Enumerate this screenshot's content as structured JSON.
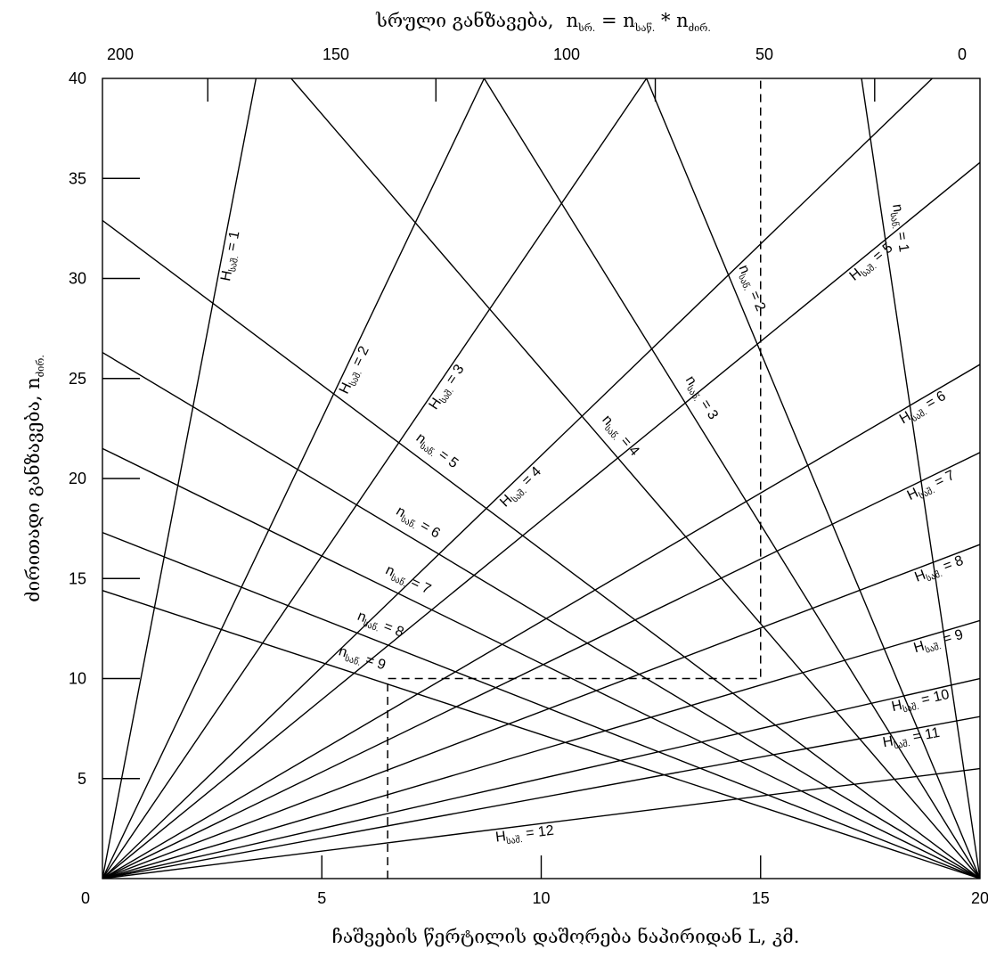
{
  "chart_data": {
    "type": "line",
    "x_axis": {
      "label": "ჩაშვების წერტილის დაშორება ნაპირიდან L, კმ.",
      "min": 0,
      "max": 20,
      "ticks": [
        0,
        5,
        10,
        15,
        20
      ],
      "tick_labels": [
        "0",
        "5",
        "10",
        "15",
        "20"
      ]
    },
    "y_axis": {
      "label_main": "ძირითადი განზავება, n",
      "label_sub": "ძირ.",
      "min": 0,
      "max": 40,
      "ticks": [
        5,
        10,
        15,
        20,
        25,
        30,
        35,
        40
      ],
      "tick_labels": [
        "5",
        "10",
        "15",
        "20",
        "25",
        "30",
        "35",
        "40"
      ]
    },
    "top_axis": {
      "label_text": "სრული   განზავება,",
      "formula": {
        "n1": "n",
        "s1": "სრ.",
        "eq": " = ",
        "n2": "n",
        "s2": "საწ.",
        "mul": " * ",
        "n3": "n",
        "s3": "ძირ."
      },
      "tick_values_x": [
        2.4,
        7.6,
        12.6,
        17.6,
        22.6
      ],
      "tick_labels": [
        "200",
        "150",
        "100",
        "50",
        "0"
      ]
    },
    "origin_label": "0",
    "series_H": [
      {
        "label": "H",
        "sub": "საშ.",
        "eq": " = 1",
        "end": [
          3.5,
          40
        ]
      },
      {
        "label": "H",
        "sub": "საშ.",
        "eq": " = 2",
        "end": [
          8.7,
          40
        ]
      },
      {
        "label": "H",
        "sub": "საშ.",
        "eq": " = 3",
        "end": [
          12.4,
          40
        ]
      },
      {
        "label": "H",
        "sub": "საშ.",
        "eq": " = 4",
        "end": [
          20,
          42.3
        ]
      },
      {
        "label": "H",
        "sub": "საშ.",
        "eq": " = 5",
        "end": [
          20,
          35.8
        ]
      },
      {
        "label": "H",
        "sub": "საშ.",
        "eq": " = 6",
        "end": [
          20,
          25.7
        ]
      },
      {
        "label": "H",
        "sub": "საშ.",
        "eq": " = 7",
        "end": [
          20,
          21.3
        ]
      },
      {
        "label": "H",
        "sub": "საშ.",
        "eq": " = 8",
        "end": [
          20,
          16.7
        ]
      },
      {
        "label": "H",
        "sub": "საშ.",
        "eq": " = 9",
        "end": [
          20,
          12.9
        ]
      },
      {
        "label": "H",
        "sub": "საშ.",
        "eq": " = 10",
        "end": [
          20,
          10.0
        ]
      },
      {
        "label": "H",
        "sub": "საშ.",
        "eq": " = 11",
        "end": [
          20,
          8.1
        ]
      },
      {
        "label": "H",
        "sub": "საშ.",
        "eq": " = 12",
        "end": [
          20,
          5.5
        ]
      }
    ],
    "series_n": [
      {
        "label": "n",
        "sub": "საწ.",
        "eq": " = 1",
        "start": [
          17.3,
          40
        ]
      },
      {
        "label": "n",
        "sub": "საწ.",
        "eq": " = 2",
        "start": [
          12.4,
          40
        ]
      },
      {
        "label": "n",
        "sub": "საწ.",
        "eq": " = 3",
        "start": [
          8.7,
          40
        ]
      },
      {
        "label": "n",
        "sub": "საწ.",
        "eq": " = 4",
        "start": [
          4.3,
          40
        ]
      },
      {
        "label": "n",
        "sub": "საწ.",
        "eq": " = 5",
        "start": [
          0,
          32.9
        ]
      },
      {
        "label": "n",
        "sub": "საწ.",
        "eq": " = 6",
        "start": [
          0,
          26.3
        ]
      },
      {
        "label": "n",
        "sub": "საწ.",
        "eq": " = 7",
        "start": [
          0,
          21.5
        ]
      },
      {
        "label": "n",
        "sub": "საწ.",
        "eq": " = 8",
        "start": [
          0,
          17.3
        ]
      },
      {
        "label": "n",
        "sub": "საწ.",
        "eq": " = 9",
        "start": [
          0,
          14.4
        ]
      }
    ],
    "guide_path": [
      [
        6.5,
        0
      ],
      [
        6.5,
        10
      ],
      [
        15,
        10
      ],
      [
        15,
        40
      ]
    ]
  }
}
